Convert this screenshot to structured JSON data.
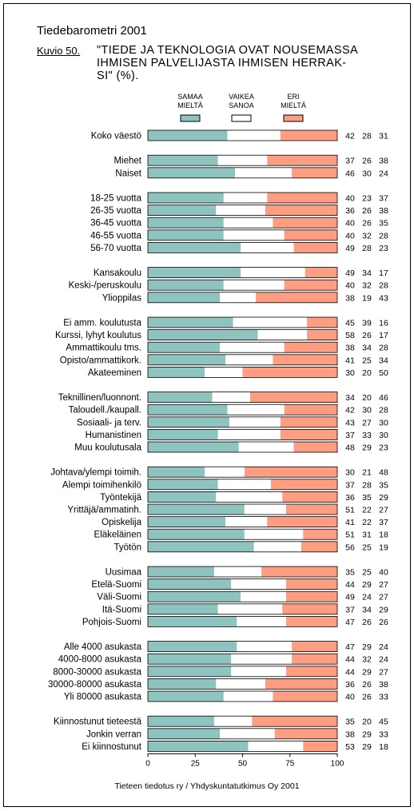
{
  "header": {
    "top_title": "Tiedebarometri 2001",
    "figure_label": "Kuvio 50.",
    "heading_lines": [
      "\"TIEDE JA TEKNOLOGIA OVAT NOUSEMASSA",
      "IHMISEN PALVELIJASTA IHMISEN HERRAK-",
      "SI\" (%)."
    ]
  },
  "source": "Tieteen tiedotus ry / Yhdyskuntatutkimus Oy 2001",
  "colors": {
    "agree": "#8ec3c0",
    "hard": "#ffffff",
    "disagree": "#fd9d82"
  },
  "chart_data": {
    "type": "bar",
    "stacked": true,
    "orientation": "horizontal",
    "xlim": [
      0,
      100
    ],
    "xticks": [
      0,
      25,
      50,
      75,
      100
    ],
    "legend": [
      {
        "label": [
          "SAMAA",
          "MIELTÄ"
        ],
        "color": "#8ec3c0"
      },
      {
        "label": [
          "VAIKEA",
          "SANOA"
        ],
        "color": "#ffffff"
      },
      {
        "label": [
          "ERI",
          "MIELTÄ"
        ],
        "color": "#fd9d82"
      }
    ],
    "groups": [
      {
        "rows": [
          {
            "label": "Koko väestö",
            "values": [
              42,
              28,
              31
            ]
          }
        ]
      },
      {
        "rows": [
          {
            "label": "Miehet",
            "values": [
              37,
              26,
              38
            ]
          },
          {
            "label": "Naiset",
            "values": [
              46,
              30,
              24
            ]
          }
        ]
      },
      {
        "rows": [
          {
            "label": "18-25 vuotta",
            "values": [
              40,
              23,
              37
            ]
          },
          {
            "label": "26-35 vuotta",
            "values": [
              36,
              26,
              38
            ]
          },
          {
            "label": "36-45 vuotta",
            "values": [
              40,
              26,
              35
            ]
          },
          {
            "label": "46-55 vuotta",
            "values": [
              40,
              32,
              28
            ]
          },
          {
            "label": "56-70 vuotta",
            "values": [
              49,
              28,
              23
            ]
          }
        ]
      },
      {
        "rows": [
          {
            "label": "Kansakoulu",
            "values": [
              49,
              34,
              17
            ]
          },
          {
            "label": "Keski-/peruskoulu",
            "values": [
              40,
              32,
              28
            ]
          },
          {
            "label": "Ylioppilas",
            "values": [
              38,
              19,
              43
            ]
          }
        ]
      },
      {
        "rows": [
          {
            "label": "Ei amm. koulutusta",
            "values": [
              45,
              39,
              16
            ]
          },
          {
            "label": "Kurssi, lyhyt koulutus",
            "values": [
              58,
              26,
              17
            ]
          },
          {
            "label": "Ammattikoulu tms.",
            "values": [
              38,
              34,
              28
            ]
          },
          {
            "label": "Opisto/ammattikork.",
            "values": [
              41,
              25,
              34
            ]
          },
          {
            "label": "Akateeminen",
            "values": [
              30,
              20,
              50
            ]
          }
        ]
      },
      {
        "rows": [
          {
            "label": "Teknillinen/luonnont.",
            "values": [
              34,
              20,
              46
            ]
          },
          {
            "label": "Taloudell./kaupall.",
            "values": [
              42,
              30,
              28
            ]
          },
          {
            "label": "Sosiaali- ja terv.",
            "values": [
              43,
              27,
              30
            ]
          },
          {
            "label": "Humanistinen",
            "values": [
              37,
              33,
              30
            ]
          },
          {
            "label": "Muu koulutusala",
            "values": [
              48,
              29,
              23
            ]
          }
        ]
      },
      {
        "rows": [
          {
            "label": "Johtava/ylempi toimih.",
            "values": [
              30,
              21,
              48
            ]
          },
          {
            "label": "Alempi toimihenkilö",
            "values": [
              37,
              28,
              35
            ]
          },
          {
            "label": "Työntekijä",
            "values": [
              36,
              35,
              29
            ]
          },
          {
            "label": "Yrittäjä/ammatinh.",
            "values": [
              51,
              22,
              27
            ]
          },
          {
            "label": "Opiskelija",
            "values": [
              41,
              22,
              37
            ]
          },
          {
            "label": "Eläkeläinen",
            "values": [
              51,
              31,
              18
            ]
          },
          {
            "label": "Työtön",
            "values": [
              56,
              25,
              19
            ]
          }
        ]
      },
      {
        "rows": [
          {
            "label": "Uusimaa",
            "values": [
              35,
              25,
              40
            ]
          },
          {
            "label": "Etelä-Suomi",
            "values": [
              44,
              29,
              27
            ]
          },
          {
            "label": "Väli-Suomi",
            "values": [
              49,
              24,
              27
            ]
          },
          {
            "label": "Itä-Suomi",
            "values": [
              37,
              34,
              29
            ]
          },
          {
            "label": "Pohjois-Suomi",
            "values": [
              47,
              26,
              26
            ]
          }
        ]
      },
      {
        "rows": [
          {
            "label": "Alle 4000 asukasta",
            "values": [
              47,
              29,
              24
            ]
          },
          {
            "label": "4000-8000 asukasta",
            "values": [
              44,
              32,
              24
            ]
          },
          {
            "label": "8000-30000 asukasta",
            "values": [
              44,
              29,
              27
            ]
          },
          {
            "label": "30000-80000 asukasta",
            "values": [
              36,
              26,
              38
            ]
          },
          {
            "label": "Yli 80000 asukasta",
            "values": [
              40,
              26,
              33
            ]
          }
        ]
      },
      {
        "rows": [
          {
            "label": "Kiinnostunut tieteestä",
            "values": [
              35,
              20,
              45
            ]
          },
          {
            "label": "Jonkin verran",
            "values": [
              38,
              29,
              33
            ]
          },
          {
            "label": "Ei kiinnostunut",
            "values": [
              53,
              29,
              18
            ]
          }
        ]
      }
    ]
  }
}
